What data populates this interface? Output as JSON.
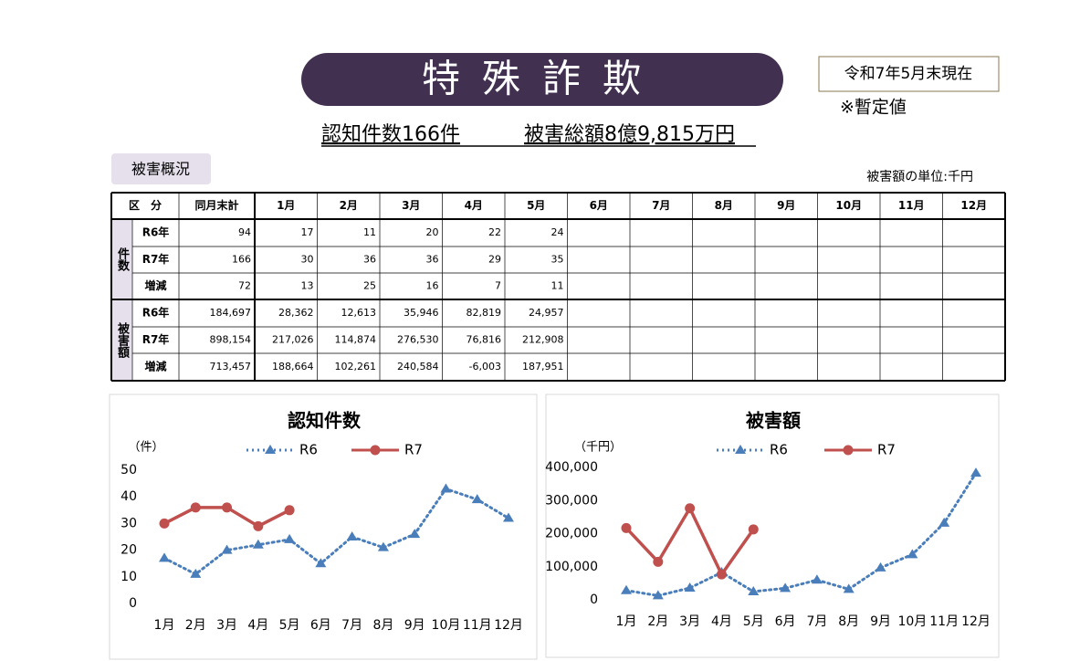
{
  "header": {
    "title": "特殊詐欺",
    "date": "令和7年5月末現在",
    "note": "※暫定値",
    "summary_count": "認知件数166件",
    "summary_amount": "被害総額8億9,815万円"
  },
  "section": {
    "label": "被害概況",
    "unit": "被害額の単位:千円"
  },
  "table": {
    "header": [
      "区　分",
      "同月末計",
      "1月",
      "2月",
      "3月",
      "4月",
      "5月",
      "6月",
      "7月",
      "8月",
      "9月",
      "10月",
      "11月",
      "12月"
    ],
    "groups": [
      {
        "label": "件数",
        "rows": [
          {
            "label": "R6年",
            "cells": [
              "94",
              "17",
              "11",
              "20",
              "22",
              "24"
            ]
          },
          {
            "label": "R7年",
            "cells": [
              "166",
              "30",
              "36",
              "36",
              "29",
              "35"
            ]
          },
          {
            "label": "増減",
            "cells": [
              "72",
              "13",
              "25",
              "16",
              "7",
              "11"
            ]
          }
        ]
      },
      {
        "label": "被害額",
        "rows": [
          {
            "label": "R6年",
            "cells": [
              "184,697",
              "28,362",
              "12,613",
              "35,946",
              "82,819",
              "24,957"
            ]
          },
          {
            "label": "R7年",
            "cells": [
              "898,154",
              "217,026",
              "114,874",
              "276,530",
              "76,816",
              "212,908"
            ]
          },
          {
            "label": "増減",
            "cells": [
              "713,457",
              "188,664",
              "102,261",
              "240,584",
              "-6,003",
              "187,951"
            ]
          }
        ]
      }
    ]
  },
  "chart_data": [
    {
      "type": "line",
      "title": "認知件数",
      "y_label": "（件）",
      "categories": [
        "1月",
        "2月",
        "3月",
        "4月",
        "5月",
        "6月",
        "7月",
        "8月",
        "9月",
        "10月",
        "11月",
        "12月"
      ],
      "series": [
        {
          "name": "R6",
          "color": "#4a7ebb",
          "values": [
            17,
            11,
            20,
            22,
            24,
            15,
            25,
            21,
            26,
            43,
            39,
            32
          ]
        },
        {
          "name": "R7",
          "color": "#c0504d",
          "values": [
            30,
            36,
            36,
            29,
            35,
            null,
            null,
            null,
            null,
            null,
            null,
            null
          ]
        }
      ],
      "ylim": [
        0,
        50
      ],
      "yticks": [
        0,
        10,
        20,
        30,
        40,
        50
      ]
    },
    {
      "type": "line",
      "title": "被害額",
      "y_label": "（千円）",
      "categories": [
        "1月",
        "2月",
        "3月",
        "4月",
        "5月",
        "6月",
        "7月",
        "8月",
        "9月",
        "10月",
        "11月",
        "12月"
      ],
      "series": [
        {
          "name": "R6",
          "color": "#4a7ebb",
          "values": [
            28362,
            12613,
            35946,
            82819,
            24957,
            35000,
            60000,
            32000,
            97000,
            137000,
            232000,
            383000
          ]
        },
        {
          "name": "R7",
          "color": "#c0504d",
          "values": [
            217026,
            114874,
            276530,
            76816,
            212908,
            null,
            null,
            null,
            null,
            null,
            null,
            null
          ]
        }
      ],
      "ylim": [
        0,
        400000
      ],
      "yticks": [
        0,
        {
          "value": 100000,
          "label": "100,000"
        },
        {
          "value": 200000,
          "label": "200,000"
        },
        {
          "value": 300000,
          "label": "300,000"
        },
        {
          "value": 400000,
          "label": "400,000"
        }
      ]
    }
  ]
}
